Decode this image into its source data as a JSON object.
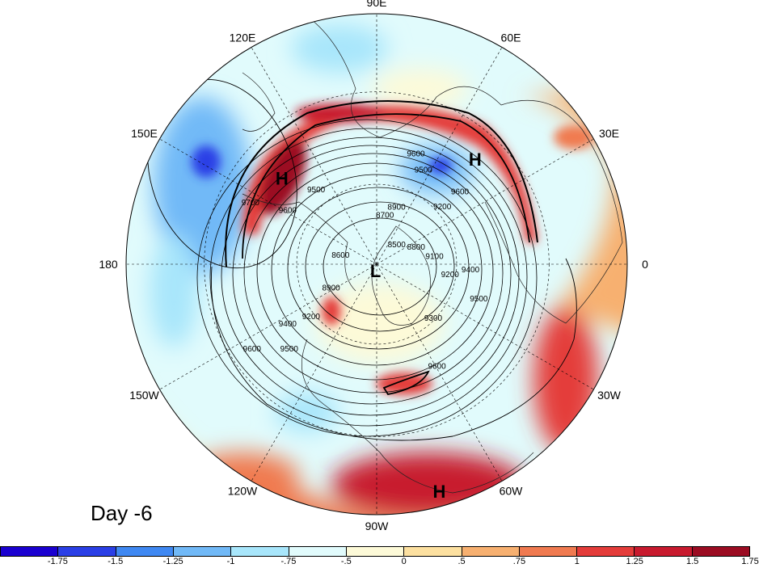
{
  "title": "Day -6",
  "longitude_labels": [
    {
      "text": "90E",
      "lon": 90
    },
    {
      "text": "60E",
      "lon": 60
    },
    {
      "text": "30E",
      "lon": 30
    },
    {
      "text": "0",
      "lon": 0
    },
    {
      "text": "30W",
      "lon": -30
    },
    {
      "text": "60W",
      "lon": -60
    },
    {
      "text": "90W",
      "lon": -90
    },
    {
      "text": "120W",
      "lon": -120
    },
    {
      "text": "150W",
      "lon": -150
    },
    {
      "text": "180",
      "lon": 180
    },
    {
      "text": "150E",
      "lon": 150
    },
    {
      "text": "120E",
      "lon": 120
    }
  ],
  "pressure_centers": [
    {
      "label": "H",
      "lon": 140,
      "lat": 45
    },
    {
      "label": "H",
      "lon": 45,
      "lat": 40
    },
    {
      "label": "H",
      "lon": -75,
      "lat": 12
    },
    {
      "label": "L",
      "lon": -95,
      "lat": 85
    }
  ],
  "contour_levels": [
    "9700",
    "9600",
    "9500",
    "9400",
    "9300",
    "9200",
    "9100",
    "9000",
    "8900",
    "8800",
    "8700",
    "8600",
    "8500"
  ],
  "contour_labels": [
    {
      "text": "9600",
      "lon": 70,
      "lat": 48
    },
    {
      "text": "9500",
      "lon": 63,
      "lat": 52
    },
    {
      "text": "9500",
      "lon": 130,
      "lat": 55
    },
    {
      "text": "9600",
      "lon": 150,
      "lat": 52
    },
    {
      "text": "9700",
      "lon": 155,
      "lat": 40
    },
    {
      "text": "9600",
      "lon": 40,
      "lat": 50
    },
    {
      "text": "9200",
      "lon": 40,
      "lat": 58
    },
    {
      "text": "8700",
      "lon": 80,
      "lat": 72
    },
    {
      "text": "8900",
      "lon": 70,
      "lat": 68
    },
    {
      "text": "8500",
      "lon": 40,
      "lat": 80
    },
    {
      "text": "8600",
      "lon": 170,
      "lat": 76
    },
    {
      "text": "8900",
      "lon": -150,
      "lat": 70
    },
    {
      "text": "9200",
      "lon": -140,
      "lat": 58
    },
    {
      "text": "9400",
      "lon": -145,
      "lat": 50
    },
    {
      "text": "9500",
      "lon": -135,
      "lat": 45
    },
    {
      "text": "9600",
      "lon": -145,
      "lat": 36
    },
    {
      "text": "8800",
      "lon": 20,
      "lat": 74
    },
    {
      "text": "9100",
      "lon": 5,
      "lat": 68
    },
    {
      "text": "9200",
      "lon": -10,
      "lat": 62
    },
    {
      "text": "9300",
      "lon": -45,
      "lat": 60
    },
    {
      "text": "9400",
      "lon": -5,
      "lat": 55
    },
    {
      "text": "9500",
      "lon": -20,
      "lat": 50
    },
    {
      "text": "9600",
      "lon": -60,
      "lat": 46
    }
  ],
  "colorbar": {
    "colors": [
      "#1a00d0",
      "#2a3fe6",
      "#3f88f2",
      "#71b9f7",
      "#a8e6fb",
      "#e1fbfc",
      "#fdfad8",
      "#fce0a0",
      "#f7b070",
      "#f07a50",
      "#e43c3a",
      "#c81a2e",
      "#9b0c22"
    ],
    "tick_labels": [
      "-1.75",
      "-1.5",
      "-1.25",
      "-1",
      "-.75",
      "-.5",
      "0",
      ".5",
      ".75",
      "1",
      "1.25",
      "1.5",
      "1.75"
    ]
  }
}
